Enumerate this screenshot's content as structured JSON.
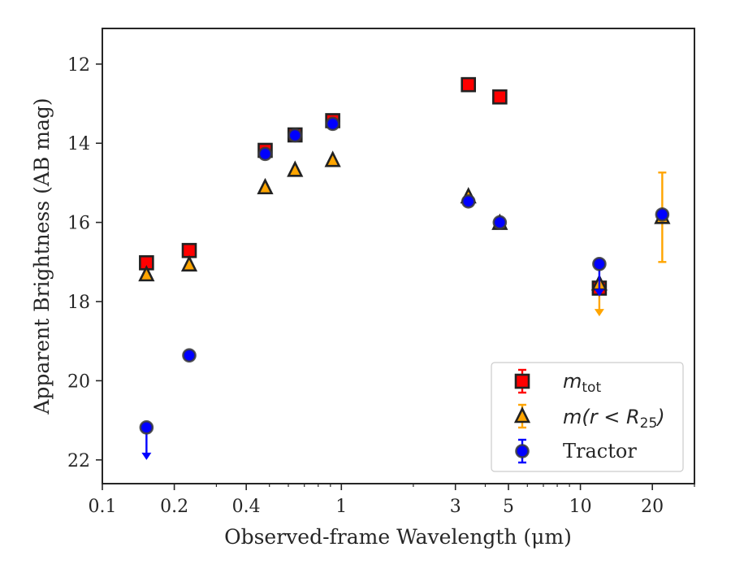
{
  "chart_data": {
    "type": "scatter",
    "xlabel": "Observed-frame Wavelength (μm)",
    "ylabel": "Apparent Brightness (AB mag)",
    "xscale": "log",
    "xlim": [
      0.1,
      30
    ],
    "ylim": [
      22.6,
      11.1
    ],
    "y_inverted": true,
    "grid": false,
    "legend_position": "lower-right",
    "x_ticks": [
      {
        "value": 0.1,
        "label": "0.1"
      },
      {
        "value": 0.2,
        "label": "0.2"
      },
      {
        "value": 0.4,
        "label": "0.4"
      },
      {
        "value": 1,
        "label": "1"
      },
      {
        "value": 3,
        "label": "3"
      },
      {
        "value": 5,
        "label": "5"
      },
      {
        "value": 10,
        "label": "10"
      },
      {
        "value": 20,
        "label": "20"
      }
    ],
    "y_ticks": [
      {
        "value": 12,
        "label": "12"
      },
      {
        "value": 14,
        "label": "14"
      },
      {
        "value": 16,
        "label": "16"
      },
      {
        "value": 18,
        "label": "18"
      },
      {
        "value": 20,
        "label": "20"
      },
      {
        "value": 22,
        "label": "22"
      }
    ],
    "series": [
      {
        "name_main": "m",
        "name_sub": "tot",
        "marker": "square",
        "color": "#ff0000",
        "errcolor": "#ff0000",
        "points": [
          {
            "x": 0.153,
            "y": 17.02
          },
          {
            "x": 0.231,
            "y": 16.71
          },
          {
            "x": 0.48,
            "y": 14.18
          },
          {
            "x": 0.64,
            "y": 13.79
          },
          {
            "x": 0.92,
            "y": 13.43
          },
          {
            "x": 3.4,
            "y": 12.52
          },
          {
            "x": 4.6,
            "y": 12.83
          },
          {
            "x": 12.0,
            "y": 17.66,
            "err": 0.1
          }
        ]
      },
      {
        "name_main": "m(r < R",
        "name_sub": "25",
        "name_tail": ")",
        "marker": "triangle",
        "color": "#ffa500",
        "errcolor": "#ffa500",
        "points": [
          {
            "x": 0.153,
            "y": 17.32
          },
          {
            "x": 0.231,
            "y": 17.07
          },
          {
            "x": 0.48,
            "y": 15.12
          },
          {
            "x": 0.64,
            "y": 14.68
          },
          {
            "x": 0.92,
            "y": 14.43
          },
          {
            "x": 3.4,
            "y": 15.35
          },
          {
            "x": 4.6,
            "y": 16.02
          },
          {
            "x": 12.0,
            "y": 17.55,
            "upper_limit": true
          },
          {
            "x": 22.0,
            "y": 15.87,
            "err": 1.13
          }
        ]
      },
      {
        "name_main": "Tractor",
        "marker": "circle",
        "color": "#0000ff",
        "errcolor": "#0000ff",
        "points": [
          {
            "x": 0.153,
            "y": 21.18,
            "upper_limit": true
          },
          {
            "x": 0.231,
            "y": 19.36
          },
          {
            "x": 0.48,
            "y": 14.27
          },
          {
            "x": 0.64,
            "y": 13.8
          },
          {
            "x": 0.92,
            "y": 13.51
          },
          {
            "x": 3.4,
            "y": 15.47
          },
          {
            "x": 4.6,
            "y": 16.0
          },
          {
            "x": 12.0,
            "y": 17.05,
            "upper_limit": true
          },
          {
            "x": 22.0,
            "y": 15.8
          }
        ]
      }
    ]
  }
}
